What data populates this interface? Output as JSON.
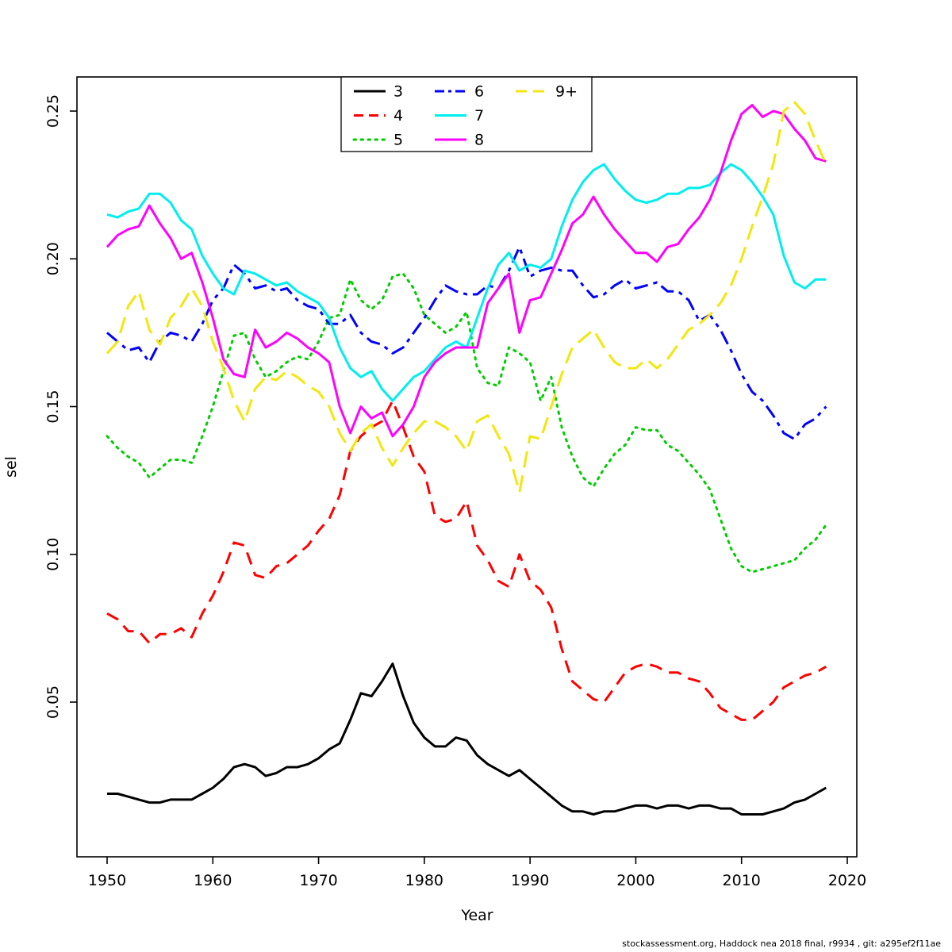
{
  "footer": {
    "text": "stockassessment.org, Haddock  nea  2018 final, r9934 , git: a295ef2f11ae"
  },
  "chart_data": {
    "type": "line",
    "title": "",
    "xlabel": "Year",
    "ylabel": "sel",
    "xlim": [
      1947,
      2021
    ],
    "ylim": [
      0.0,
      0.262
    ],
    "grid": false,
    "legend_position": "top-center-inside",
    "xticks": [
      1950,
      1960,
      1970,
      1980,
      1990,
      2000,
      2010,
      2020
    ],
    "yticks": [
      0.05,
      0.1,
      0.15,
      0.2,
      0.25
    ],
    "ytick_labels": [
      "0.05",
      "0.10",
      "0.15",
      "0.20",
      "0.25"
    ],
    "x": [
      1950,
      1951,
      1952,
      1953,
      1954,
      1955,
      1956,
      1957,
      1958,
      1959,
      1960,
      1961,
      1962,
      1963,
      1964,
      1965,
      1966,
      1967,
      1968,
      1969,
      1970,
      1971,
      1972,
      1973,
      1974,
      1975,
      1976,
      1977,
      1978,
      1979,
      1980,
      1981,
      1982,
      1983,
      1984,
      1985,
      1986,
      1987,
      1988,
      1989,
      1990,
      1991,
      1992,
      1993,
      1994,
      1995,
      1996,
      1997,
      1998,
      1999,
      2000,
      2001,
      2002,
      2003,
      2004,
      2005,
      2006,
      2007,
      2008,
      2009,
      2010,
      2011,
      2012,
      2013,
      2014,
      2015,
      2016,
      2017,
      2018
    ],
    "series": [
      {
        "name": "3",
        "color": "#000000",
        "linestyle": "solid",
        "values": [
          0.019,
          0.019,
          0.018,
          0.017,
          0.016,
          0.016,
          0.017,
          0.017,
          0.017,
          0.019,
          0.021,
          0.024,
          0.028,
          0.029,
          0.028,
          0.025,
          0.026,
          0.028,
          0.028,
          0.029,
          0.031,
          0.034,
          0.036,
          0.044,
          0.053,
          0.052,
          0.057,
          0.063,
          0.052,
          0.043,
          0.038,
          0.035,
          0.035,
          0.038,
          0.037,
          0.032,
          0.029,
          0.027,
          0.025,
          0.027,
          0.024,
          0.021,
          0.018,
          0.015,
          0.013,
          0.013,
          0.012,
          0.013,
          0.013,
          0.014,
          0.015,
          0.015,
          0.014,
          0.015,
          0.015,
          0.014,
          0.015,
          0.015,
          0.014,
          0.014,
          0.012,
          0.012,
          0.012,
          0.013,
          0.014,
          0.016,
          0.017,
          0.019,
          0.021
        ]
      },
      {
        "name": "4",
        "color": "#ff0000",
        "linestyle": "dashed",
        "values": [
          0.08,
          0.078,
          0.074,
          0.074,
          0.07,
          0.073,
          0.073,
          0.075,
          0.072,
          0.08,
          0.086,
          0.094,
          0.104,
          0.103,
          0.093,
          0.092,
          0.096,
          0.097,
          0.1,
          0.103,
          0.108,
          0.112,
          0.12,
          0.135,
          0.14,
          0.143,
          0.145,
          0.152,
          0.143,
          0.133,
          0.128,
          0.113,
          0.111,
          0.112,
          0.118,
          0.103,
          0.098,
          0.091,
          0.089,
          0.1,
          0.091,
          0.088,
          0.082,
          0.068,
          0.057,
          0.054,
          0.051,
          0.05,
          0.055,
          0.06,
          0.062,
          0.063,
          0.062,
          0.06,
          0.06,
          0.058,
          0.057,
          0.053,
          0.048,
          0.046,
          0.044,
          0.044,
          0.047,
          0.05,
          0.055,
          0.057,
          0.059,
          0.06,
          0.062
        ]
      },
      {
        "name": "5",
        "color": "#00cd00",
        "linestyle": "dotted",
        "values": [
          0.14,
          0.136,
          0.133,
          0.131,
          0.126,
          0.129,
          0.132,
          0.132,
          0.131,
          0.14,
          0.15,
          0.162,
          0.174,
          0.175,
          0.166,
          0.16,
          0.162,
          0.165,
          0.167,
          0.166,
          0.172,
          0.18,
          0.181,
          0.193,
          0.186,
          0.183,
          0.186,
          0.194,
          0.195,
          0.19,
          0.181,
          0.178,
          0.175,
          0.177,
          0.182,
          0.163,
          0.158,
          0.157,
          0.17,
          0.168,
          0.165,
          0.152,
          0.16,
          0.143,
          0.133,
          0.126,
          0.123,
          0.129,
          0.134,
          0.137,
          0.143,
          0.142,
          0.142,
          0.137,
          0.135,
          0.131,
          0.127,
          0.122,
          0.112,
          0.102,
          0.096,
          0.094,
          0.095,
          0.096,
          0.097,
          0.098,
          0.102,
          0.105,
          0.11
        ]
      },
      {
        "name": "6",
        "color": "#0000ff",
        "linestyle": "dashdot",
        "values": [
          0.175,
          0.172,
          0.169,
          0.17,
          0.165,
          0.172,
          0.175,
          0.174,
          0.172,
          0.178,
          0.186,
          0.19,
          0.198,
          0.195,
          0.19,
          0.191,
          0.189,
          0.19,
          0.186,
          0.184,
          0.183,
          0.178,
          0.178,
          0.181,
          0.175,
          0.172,
          0.171,
          0.168,
          0.17,
          0.175,
          0.18,
          0.186,
          0.191,
          0.189,
          0.188,
          0.188,
          0.191,
          0.19,
          0.196,
          0.204,
          0.194,
          0.196,
          0.197,
          0.196,
          0.196,
          0.191,
          0.187,
          0.188,
          0.191,
          0.193,
          0.19,
          0.191,
          0.192,
          0.189,
          0.189,
          0.186,
          0.179,
          0.181,
          0.176,
          0.169,
          0.161,
          0.155,
          0.152,
          0.147,
          0.141,
          0.139,
          0.144,
          0.146,
          0.15
        ]
      },
      {
        "name": "7",
        "color": "#00eeee",
        "linestyle": "solid",
        "values": [
          0.215,
          0.214,
          0.216,
          0.217,
          0.222,
          0.222,
          0.219,
          0.213,
          0.21,
          0.201,
          0.195,
          0.19,
          0.188,
          0.196,
          0.195,
          0.193,
          0.191,
          0.192,
          0.189,
          0.187,
          0.185,
          0.18,
          0.17,
          0.163,
          0.16,
          0.162,
          0.156,
          0.152,
          0.156,
          0.16,
          0.162,
          0.166,
          0.17,
          0.172,
          0.17,
          0.18,
          0.19,
          0.198,
          0.202,
          0.196,
          0.198,
          0.197,
          0.2,
          0.211,
          0.22,
          0.226,
          0.23,
          0.232,
          0.227,
          0.223,
          0.22,
          0.219,
          0.22,
          0.222,
          0.222,
          0.224,
          0.224,
          0.225,
          0.229,
          0.232,
          0.23,
          0.226,
          0.221,
          0.215,
          0.201,
          0.192,
          0.19,
          0.193,
          0.193
        ]
      },
      {
        "name": "8",
        "color": "#ff00ff",
        "linestyle": "solid",
        "values": [
          0.204,
          0.208,
          0.21,
          0.211,
          0.218,
          0.212,
          0.207,
          0.2,
          0.202,
          0.192,
          0.18,
          0.166,
          0.161,
          0.16,
          0.176,
          0.17,
          0.172,
          0.175,
          0.173,
          0.17,
          0.168,
          0.165,
          0.15,
          0.141,
          0.15,
          0.146,
          0.148,
          0.14,
          0.144,
          0.15,
          0.16,
          0.165,
          0.168,
          0.17,
          0.17,
          0.17,
          0.185,
          0.19,
          0.195,
          0.175,
          0.186,
          0.187,
          0.195,
          0.203,
          0.212,
          0.215,
          0.221,
          0.215,
          0.21,
          0.206,
          0.202,
          0.202,
          0.199,
          0.204,
          0.205,
          0.21,
          0.214,
          0.22,
          0.229,
          0.24,
          0.249,
          0.252,
          0.248,
          0.25,
          0.249,
          0.244,
          0.24,
          0.234,
          0.233
        ]
      },
      {
        "name": "9+",
        "color": "#f2e70c",
        "linestyle": "longdash",
        "values": [
          0.168,
          0.172,
          0.184,
          0.189,
          0.176,
          0.171,
          0.18,
          0.184,
          0.19,
          0.184,
          0.172,
          0.163,
          0.152,
          0.145,
          0.156,
          0.16,
          0.159,
          0.162,
          0.16,
          0.157,
          0.155,
          0.15,
          0.141,
          0.135,
          0.141,
          0.144,
          0.136,
          0.13,
          0.136,
          0.141,
          0.145,
          0.145,
          0.143,
          0.14,
          0.135,
          0.145,
          0.147,
          0.14,
          0.134,
          0.121,
          0.14,
          0.139,
          0.15,
          0.161,
          0.17,
          0.173,
          0.176,
          0.17,
          0.165,
          0.163,
          0.163,
          0.166,
          0.163,
          0.166,
          0.171,
          0.176,
          0.178,
          0.181,
          0.185,
          0.191,
          0.2,
          0.211,
          0.221,
          0.232,
          0.25,
          0.253,
          0.249,
          0.24,
          0.232
        ]
      }
    ]
  }
}
